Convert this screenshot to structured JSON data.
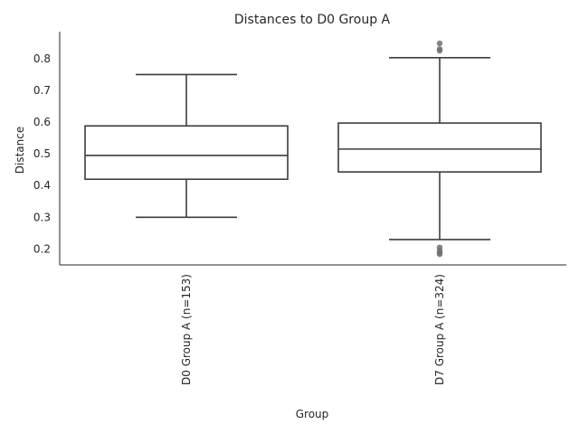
{
  "chart_data": {
    "type": "box",
    "title": "Distances to D0 Group A",
    "xlabel": "Group",
    "ylabel": "Distance",
    "ylim": [
      0.15,
      0.885
    ],
    "yticks": [
      0.2,
      0.3,
      0.4,
      0.5,
      0.6,
      0.7,
      0.8
    ],
    "grid": false,
    "categories": [
      "D0 Group A (n=153)",
      "D7 Group A (n=324)"
    ],
    "boxes": [
      {
        "name": "D0 Group A (n=153)",
        "whisker_low": 0.3,
        "q1": 0.42,
        "median": 0.495,
        "q3": 0.588,
        "whisker_high": 0.75,
        "outliers": []
      },
      {
        "name": "D7 Group A (n=324)",
        "whisker_low": 0.23,
        "q1": 0.443,
        "median": 0.515,
        "q3": 0.597,
        "whisker_high": 0.803,
        "outliers": [
          0.848,
          0.83,
          0.825,
          0.205,
          0.195,
          0.188,
          0.184
        ]
      }
    ]
  }
}
